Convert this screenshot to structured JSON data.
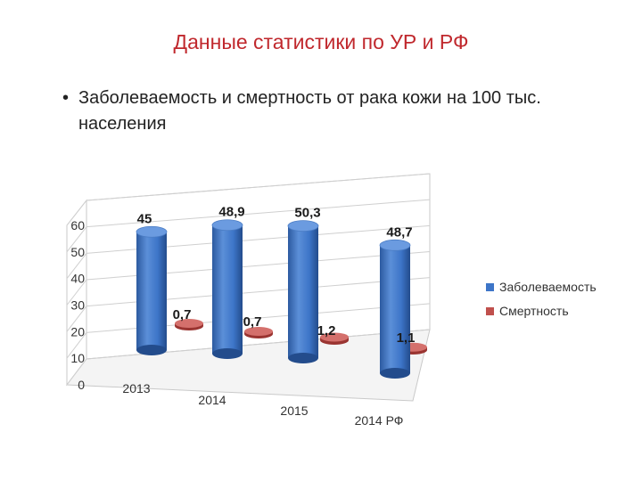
{
  "slide": {
    "title": "Данные статистики по УР и РФ",
    "bullet": "Заболеваемость и смертность от рака кожи на 100 тыс. населения"
  },
  "chart_data": {
    "type": "bar",
    "style": "3d-cylinder",
    "categories": [
      "2013",
      "2014",
      "2015",
      "2014 РФ"
    ],
    "series": [
      {
        "name": "Заболеваемость",
        "values": [
          45,
          48.9,
          50.3,
          48.7
        ],
        "labels": [
          "45",
          "48,9",
          "50,3",
          "48,7"
        ],
        "color": "#3d75c8"
      },
      {
        "name": "Смертность",
        "values": [
          0.7,
          0.7,
          1.2,
          1.1
        ],
        "labels": [
          "0,7",
          "0,7",
          "1,2",
          "1,1"
        ],
        "color": "#c0504d"
      }
    ],
    "y_ticks": [
      "0",
      "10",
      "20",
      "30",
      "40",
      "50",
      "60"
    ],
    "ylim": [
      0,
      60
    ],
    "grid": true,
    "legend": "right"
  }
}
